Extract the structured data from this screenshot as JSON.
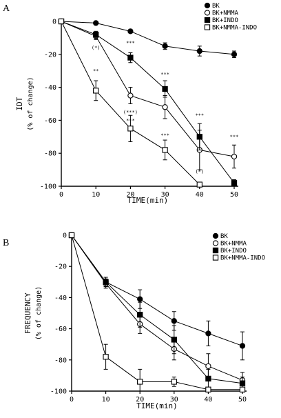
{
  "chart_data": [
    {
      "panel_label": "A",
      "type": "line",
      "xlabel": "TIME(min)",
      "ylabel": "IDT",
      "ylabel_sub": "(% of change)",
      "x": [
        0,
        10,
        20,
        30,
        40,
        50
      ],
      "xticks": [
        "0",
        "10",
        "20",
        "30",
        "40",
        "50"
      ],
      "ylim": [
        -100,
        0
      ],
      "yticks": [
        "0",
        "-20",
        "-40",
        "-60",
        "-80",
        "-100"
      ],
      "legend_position": "top-right",
      "series": [
        {
          "name": "BK",
          "marker": "filled-circle",
          "x": [
            0,
            10,
            20,
            30,
            40,
            50
          ],
          "y": [
            0,
            -1,
            -6,
            -15,
            -18,
            -20
          ],
          "err": [
            0,
            1,
            1,
            2,
            3,
            2
          ]
        },
        {
          "name": "BK+NMMA",
          "marker": "open-circle",
          "x": [
            0,
            10,
            20,
            30,
            40,
            50
          ],
          "y": [
            0,
            -9,
            -45,
            -52,
            -78,
            -82
          ],
          "err": [
            0,
            2,
            5,
            7,
            12,
            7
          ]
        },
        {
          "name": "BK+INDO",
          "marker": "filled-square",
          "x": [
            0,
            10,
            20,
            30,
            40,
            50
          ],
          "y": [
            0,
            -8,
            -22,
            -41,
            -70,
            -98
          ],
          "err": [
            0,
            2,
            3,
            5,
            8,
            2
          ]
        },
        {
          "name": "BK+NMMA-INDO",
          "marker": "open-square",
          "x": [
            0,
            10,
            20,
            30,
            40
          ],
          "y": [
            0,
            -42,
            -65,
            -78,
            -99
          ],
          "err": [
            0,
            6,
            8,
            6,
            1
          ]
        }
      ],
      "annotations": [
        {
          "text": "(*)",
          "x": 10,
          "y": -17
        },
        {
          "text": "**",
          "x": 10,
          "y": -31
        },
        {
          "text": "***",
          "x": 20,
          "y": -14
        },
        {
          "text": "(***)",
          "x": 20,
          "y": -56
        },
        {
          "text": "***",
          "x": 20,
          "y": -61
        },
        {
          "text": "***",
          "x": 30,
          "y": -33
        },
        {
          "text": "***",
          "x": 30,
          "y": -70
        },
        {
          "text": "***",
          "x": 40,
          "y": -58
        },
        {
          "text": "(*)",
          "x": 40,
          "y": -92
        },
        {
          "text": "***",
          "x": 50,
          "y": -71
        }
      ]
    },
    {
      "panel_label": "B",
      "type": "line",
      "xlabel": "TIME(min)",
      "ylabel": "FREQUENCY",
      "ylabel_sub": "(% of change)",
      "x": [
        0,
        10,
        20,
        30,
        40,
        50
      ],
      "xticks": [
        "0",
        "10",
        "20",
        "30",
        "40",
        "50"
      ],
      "ylim": [
        -100,
        0
      ],
      "yticks": [
        "0",
        "-20",
        "-40",
        "-60",
        "-80",
        "-100"
      ],
      "legend_position": "top-right",
      "series": [
        {
          "name": "BK",
          "marker": "filled-circle",
          "x": [
            0,
            10,
            20,
            30,
            40,
            50
          ],
          "y": [
            0,
            -30,
            -41,
            -55,
            -63,
            -71
          ],
          "err": [
            0,
            3,
            6,
            6,
            8,
            9
          ]
        },
        {
          "name": "BK+NMMA",
          "marker": "open-circle",
          "x": [
            0,
            10,
            20,
            30,
            40,
            50
          ],
          "y": [
            0,
            -31,
            -57,
            -73,
            -84,
            -93
          ],
          "err": [
            0,
            3,
            6,
            7,
            8,
            5
          ]
        },
        {
          "name": "BK+INDO",
          "marker": "filled-square",
          "x": [
            0,
            10,
            20,
            30,
            40,
            50
          ],
          "y": [
            0,
            -30,
            -51,
            -67,
            -92,
            -95
          ],
          "err": [
            0,
            3,
            8,
            9,
            6,
            4
          ]
        },
        {
          "name": "BK+NMMA-INDO",
          "marker": "open-square",
          "x": [
            0,
            10,
            20,
            30,
            40,
            50
          ],
          "y": [
            0,
            -78,
            -94,
            -94,
            -99,
            -99
          ],
          "err": [
            0,
            8,
            8,
            3,
            1,
            1
          ]
        }
      ],
      "annotations": []
    }
  ]
}
